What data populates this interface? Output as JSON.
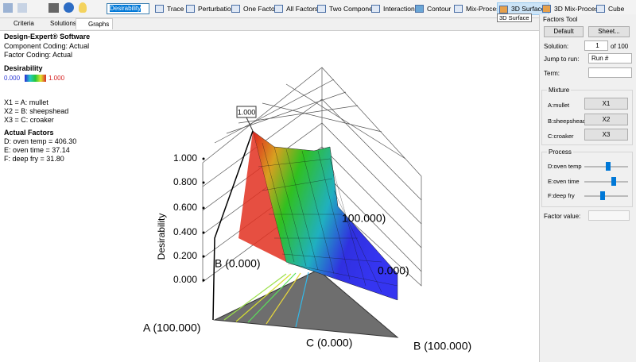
{
  "toolbar": {
    "response": "Desirability",
    "buttons": [
      "Trace",
      "Perturbation",
      "One Factor",
      "All Factors",
      "Two Component",
      "Interaction",
      "Contour",
      "Mix-Process",
      "3D Surface",
      "3D Mix-Process",
      "Cube"
    ],
    "tooltip": "3D Surface"
  },
  "tabs": [
    "Criteria",
    "Solutions",
    "Graphs"
  ],
  "info": {
    "software": "Design-Expert® Software",
    "component_coding": "Component Coding: Actual",
    "factor_coding": "Factor Coding: Actual",
    "response": "Desirability",
    "legend_min": "0.000",
    "legend_max": "1.000",
    "components": [
      "X1 = A: mullet",
      "X2 = B: sheepshead",
      "X3 = C: croaker"
    ],
    "factors_title": "Actual Factors",
    "factors": [
      "D: oven temp = 406.30",
      "E: oven time = 37.14",
      "F: deep fry = 31.80"
    ]
  },
  "graph": {
    "y_axis_label": "Desirability",
    "yticks": [
      "1.000",
      "0.800",
      "0.600",
      "0.400",
      "0.200",
      "0.000"
    ],
    "flag": "1.000",
    "vertex_labels": [
      "A (100.000)",
      "B (0.000)",
      "C (0.000)",
      "B (100.000)",
      "100.000)",
      "0.000)"
    ]
  },
  "factors_tool": {
    "title": "Factors Tool",
    "default": "Default",
    "sheet": "Sheet...",
    "solution_label": "Solution:",
    "solution": "1",
    "solution_of": "of 100",
    "jump_label": "Jump to run:",
    "jump": "Run #",
    "term_label": "Term:",
    "mixture_title": "Mixture",
    "mixture": [
      {
        "label": "A:mullet",
        "button": "X1"
      },
      {
        "label": "B:sheepshead",
        "button": "X2"
      },
      {
        "label": "C:croaker",
        "button": "X3"
      }
    ],
    "process_title": "Process",
    "process": [
      "D:oven temp",
      "E:oven time",
      "F:deep fry"
    ],
    "factor_value_label": "Factor value:"
  }
}
